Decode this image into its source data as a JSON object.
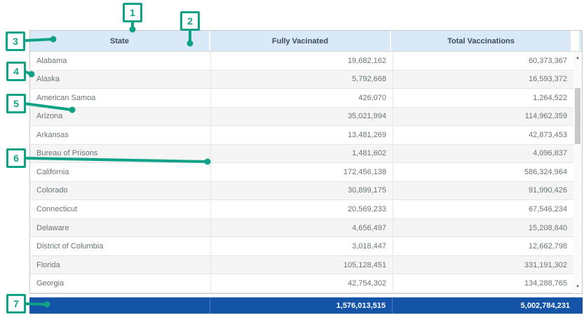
{
  "table": {
    "columns": [
      "State",
      "Fully Vacinated",
      "Total Vaccinations"
    ],
    "rows": [
      {
        "state": "Alabama",
        "fully_vacinated": "19,682,162",
        "total_vaccinations": "60,373,367"
      },
      {
        "state": "Alaska",
        "fully_vacinated": "5,792,668",
        "total_vaccinations": "16,593,372"
      },
      {
        "state": "American Samoa",
        "fully_vacinated": "426,070",
        "total_vaccinations": "1,264,522"
      },
      {
        "state": "Arizona",
        "fully_vacinated": "35,021,994",
        "total_vaccinations": "114,962,359"
      },
      {
        "state": "Arkansas",
        "fully_vacinated": "13,481,269",
        "total_vaccinations": "42,873,453"
      },
      {
        "state": "Bureau of Prisons",
        "fully_vacinated": "1,481,602",
        "total_vaccinations": "4,096,837"
      },
      {
        "state": "California",
        "fully_vacinated": "172,456,138",
        "total_vaccinations": "586,324,964"
      },
      {
        "state": "Colorado",
        "fully_vacinated": "30,899,175",
        "total_vaccinations": "91,990,426"
      },
      {
        "state": "Connecticut",
        "fully_vacinated": "20,569,233",
        "total_vaccinations": "67,546,234"
      },
      {
        "state": "Delaware",
        "fully_vacinated": "4,656,497",
        "total_vaccinations": "15,208,840"
      },
      {
        "state": "District of Columbia",
        "fully_vacinated": "3,018,447",
        "total_vaccinations": "12,662,798"
      },
      {
        "state": "Florida",
        "fully_vacinated": "105,128,451",
        "total_vaccinations": "331,191,302"
      },
      {
        "state": "Georgia",
        "fully_vacinated": "42,754,302",
        "total_vaccinations": "134,288,765"
      }
    ],
    "total_row": {
      "fully_vacinated": "1,576,013,515",
      "total_vaccinations": "5,002,784,231"
    }
  },
  "icons": {
    "scroll_up": "▲",
    "scroll_down": "▼"
  },
  "callouts": {
    "labels": [
      "1",
      "2",
      "3",
      "4",
      "5",
      "6",
      "7"
    ]
  },
  "colors": {
    "accent_green": "#10a287",
    "header_bg": "#d9e9f8",
    "total_row_bg": "#1353a8"
  }
}
